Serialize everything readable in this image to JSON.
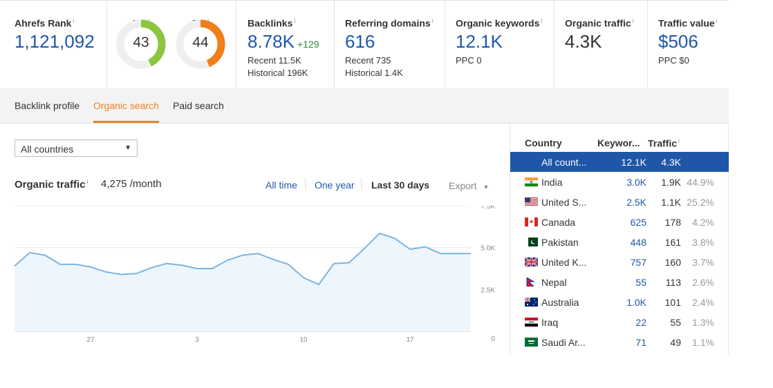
{
  "metrics": {
    "ahrefs_rank": {
      "label": "Ahrefs Rank",
      "info": "i",
      "value": "1,121,092"
    },
    "ur": {
      "label": "UR",
      "info": "i",
      "value": "43",
      "level": 43
    },
    "dr": {
      "label": "DR",
      "info": "i",
      "value": "44",
      "level": 44
    },
    "backlinks": {
      "label": "Backlinks",
      "info": "i",
      "value": "8.78K",
      "delta": "+129",
      "recent": "Recent 11.5K",
      "historical": "Historical 196K"
    },
    "referring_domains": {
      "label": "Referring domains",
      "info": "i",
      "value": "616",
      "recent": "Recent 735",
      "historical": "Historical 1.4K"
    },
    "organic_keywords": {
      "label": "Organic keywords",
      "info": "i",
      "value": "12.1K",
      "sub": "PPC 0"
    },
    "organic_traffic": {
      "label": "Organic traffic",
      "info": "i",
      "value": "4.3K"
    },
    "traffic_value": {
      "label": "Traffic value",
      "info": "i",
      "value": "$506",
      "sub": "PPC $0"
    }
  },
  "colors": {
    "accent": "#f07f1a",
    "link": "#1f57a8",
    "ur_gauge": "#8cc63f",
    "dr_gauge": "#f07f1a",
    "chart_line": "#7ab4e0",
    "chart_fill": "#eef6fd"
  },
  "tabs": [
    "Backlink profile",
    "Organic search",
    "Paid search"
  ],
  "active_tab": "Organic search",
  "country_select": {
    "value": "All countries",
    "icon": "caret-down-icon"
  },
  "traffic_panel": {
    "title": "Organic traffic",
    "info": "i",
    "value": "4,275 /month",
    "ranges": [
      "All time",
      "One year",
      "Last 30 days"
    ],
    "selected_range": "Last 30 days",
    "export_label": "Export",
    "export_icon": "caret-down-icon"
  },
  "chart_data": {
    "type": "area",
    "x_ticks": [
      "27",
      "3",
      "10",
      "17"
    ],
    "y_ticks": [
      "7.5K",
      "5.0K",
      "2.5K",
      "0"
    ],
    "ylim": [
      0,
      7500
    ],
    "grid": true,
    "values": [
      3900,
      4700,
      4550,
      4000,
      4000,
      3850,
      3550,
      3400,
      3450,
      3800,
      4050,
      3950,
      3750,
      3750,
      4250,
      4550,
      4650,
      4300,
      4000,
      3200,
      2800,
      4050,
      4100,
      4950,
      5850,
      5550,
      4900,
      5050,
      4650,
      4650,
      4650
    ]
  },
  "country_table": {
    "headers": {
      "country": "Country",
      "keywords": "Keywor...",
      "traffic": "Traffic",
      "traffic_info": "i"
    },
    "rows": [
      {
        "country": "All count...",
        "keywords": "12.1K",
        "traffic": "4.3K",
        "pct": "",
        "flag": "none",
        "selected": true
      },
      {
        "country": "India",
        "keywords": "3.0K",
        "traffic": "1.9K",
        "pct": "44.9%",
        "flag": "india-flag-icon"
      },
      {
        "country": "United S...",
        "keywords": "2.5K",
        "traffic": "1.1K",
        "pct": "25.2%",
        "flag": "usa-flag-icon"
      },
      {
        "country": "Canada",
        "keywords": "625",
        "traffic": "178",
        "pct": "4.2%",
        "flag": "canada-flag-icon"
      },
      {
        "country": "Pakistan",
        "keywords": "448",
        "traffic": "161",
        "pct": "3.8%",
        "flag": "pakistan-flag-icon"
      },
      {
        "country": "United K...",
        "keywords": "757",
        "traffic": "160",
        "pct": "3.7%",
        "flag": "uk-flag-icon"
      },
      {
        "country": "Nepal",
        "keywords": "55",
        "traffic": "113",
        "pct": "2.6%",
        "flag": "nepal-flag-icon"
      },
      {
        "country": "Australia",
        "keywords": "1.0K",
        "traffic": "101",
        "pct": "2.4%",
        "flag": "australia-flag-icon"
      },
      {
        "country": "Iraq",
        "keywords": "22",
        "traffic": "55",
        "pct": "1.3%",
        "flag": "iraq-flag-icon"
      },
      {
        "country": "Saudi Ar...",
        "keywords": "71",
        "traffic": "49",
        "pct": "1.1%",
        "flag": "saudi-flag-icon"
      }
    ]
  }
}
